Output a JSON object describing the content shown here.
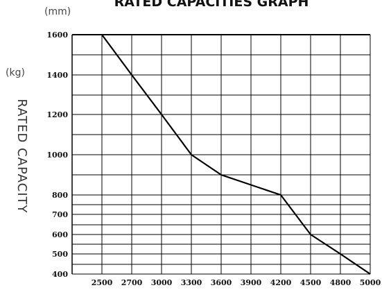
{
  "chart_data": {
    "type": "line",
    "title": "RATED CAPACITIES GRAPH",
    "x_unit": "(mm)",
    "y_unit": "(kg)",
    "ylabel": "RATED CAPACITY",
    "x_ticks": [
      "2500",
      "2700",
      "3000",
      "3300",
      "3600",
      "3900",
      "4200",
      "4500",
      "4800",
      "5000"
    ],
    "y_ticks": [
      "1600",
      "1400",
      "1200",
      "1000",
      "800",
      "700",
      "600",
      "500",
      "400"
    ],
    "series": [
      {
        "x": [
          "2500",
          "2700",
          "3000",
          "3300",
          "3600",
          "3900",
          "4200",
          "4500",
          "4800",
          "5000"
        ],
        "y": [
          1600,
          1400,
          1200,
          1000,
          900,
          850,
          800,
          600,
          500,
          400
        ]
      }
    ],
    "grid": true
  }
}
